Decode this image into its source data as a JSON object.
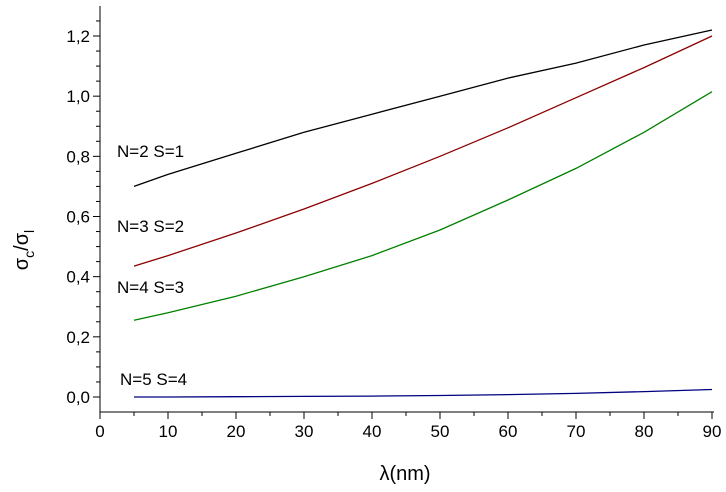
{
  "chart_data": {
    "type": "line",
    "xlabel": "λ(nm)",
    "ylabel": {
      "main": "σ",
      "sub1": "c",
      "slash": "/",
      "main2": "σ",
      "sub2": "l"
    },
    "xlim": [
      0,
      90
    ],
    "ylim": [
      -0.05,
      1.3
    ],
    "x_ticks": [
      0,
      10,
      20,
      30,
      40,
      50,
      60,
      70,
      80,
      90
    ],
    "x_tick_labels": [
      "0",
      "10",
      "20",
      "30",
      "40",
      "50",
      "60",
      "70",
      "80",
      "90"
    ],
    "y_ticks": [
      0.0,
      0.2,
      0.4,
      0.6,
      0.8,
      1.0,
      1.2
    ],
    "y_tick_labels": [
      "0,0",
      "0,2",
      "0,4",
      "0,6",
      "0,8",
      "1,0",
      "1,2"
    ],
    "grid": false,
    "legend": "inline labels",
    "series": [
      {
        "name": "N=2 S=1",
        "color": "#000000",
        "x": [
          5,
          10,
          20,
          30,
          40,
          50,
          60,
          70,
          80,
          90
        ],
        "values": [
          0.7,
          0.74,
          0.81,
          0.88,
          0.94,
          1.0,
          1.06,
          1.11,
          1.17,
          1.22
        ]
      },
      {
        "name": "N=3 S=2",
        "color": "#8b0000",
        "x": [
          5,
          10,
          20,
          30,
          40,
          50,
          60,
          70,
          80,
          90
        ],
        "values": [
          0.435,
          0.47,
          0.545,
          0.625,
          0.71,
          0.8,
          0.895,
          0.995,
          1.095,
          1.2
        ]
      },
      {
        "name": "N=4 S=3",
        "color": "#008000",
        "x": [
          5,
          10,
          20,
          30,
          40,
          50,
          60,
          70,
          80,
          90
        ],
        "values": [
          0.255,
          0.28,
          0.335,
          0.4,
          0.47,
          0.555,
          0.655,
          0.76,
          0.88,
          1.015
        ]
      },
      {
        "name": "N=5 S=4",
        "color": "#000080",
        "x": [
          5,
          10,
          20,
          30,
          40,
          50,
          60,
          70,
          80,
          90
        ],
        "values": [
          0.0,
          0.0,
          0.001,
          0.002,
          0.003,
          0.005,
          0.008,
          0.012,
          0.018,
          0.025
        ]
      }
    ]
  }
}
